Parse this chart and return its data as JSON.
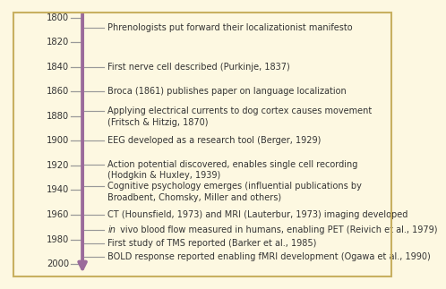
{
  "background_color": "#fdf8e1",
  "border_color": "#c8b060",
  "timeline_color": "#9b6b9b",
  "tick_color": "#999999",
  "text_color": "#333333",
  "year_ticks": [
    1800,
    1820,
    1840,
    1860,
    1880,
    1900,
    1920,
    1940,
    1960,
    1980,
    2000
  ],
  "y_min": 1793,
  "y_max": 2013,
  "events": [
    {
      "year": 1808,
      "lines": [
        "Phrenologists put forward their localizationist manifesto"
      ],
      "italic_prefix": ""
    },
    {
      "year": 1840,
      "lines": [
        "First nerve cell described (Purkinje, 1837)"
      ],
      "italic_prefix": ""
    },
    {
      "year": 1860,
      "lines": [
        "Broca (1861) publishes paper on language localization"
      ],
      "italic_prefix": ""
    },
    {
      "year": 1876,
      "lines": [
        "Applying electrical currents to dog cortex causes movement",
        "(Fritsch & Hitzig, 1870)"
      ],
      "italic_prefix": ""
    },
    {
      "year": 1900,
      "lines": [
        "EEG developed as a research tool (Berger, 1929)"
      ],
      "italic_prefix": ""
    },
    {
      "year": 1919,
      "lines": [
        "Action potential discovered, enables single cell recording",
        "(Hodgkin & Huxley, 1939)"
      ],
      "italic_prefix": ""
    },
    {
      "year": 1937,
      "lines": [
        "Cognitive psychology emerges (influential publications by",
        "Broadbent, Chomsky, Miller and others)"
      ],
      "italic_prefix": ""
    },
    {
      "year": 1960,
      "lines": [
        "CT (Hounsfield, 1973) and MRI (Lauterbur, 1973) imaging developed"
      ],
      "italic_prefix": ""
    },
    {
      "year": 1972,
      "lines": [
        " vivo blood flow measured in humans, enabling PET (Reivich et al., 1979)"
      ],
      "italic_prefix": "in"
    },
    {
      "year": 1983,
      "lines": [
        "First study of TMS reported (Barker et al., 1985)"
      ],
      "italic_prefix": ""
    },
    {
      "year": 1994,
      "lines": [
        "BOLD response reported enabling fMRI development (Ogawa et al., 1990)"
      ],
      "italic_prefix": ""
    }
  ]
}
